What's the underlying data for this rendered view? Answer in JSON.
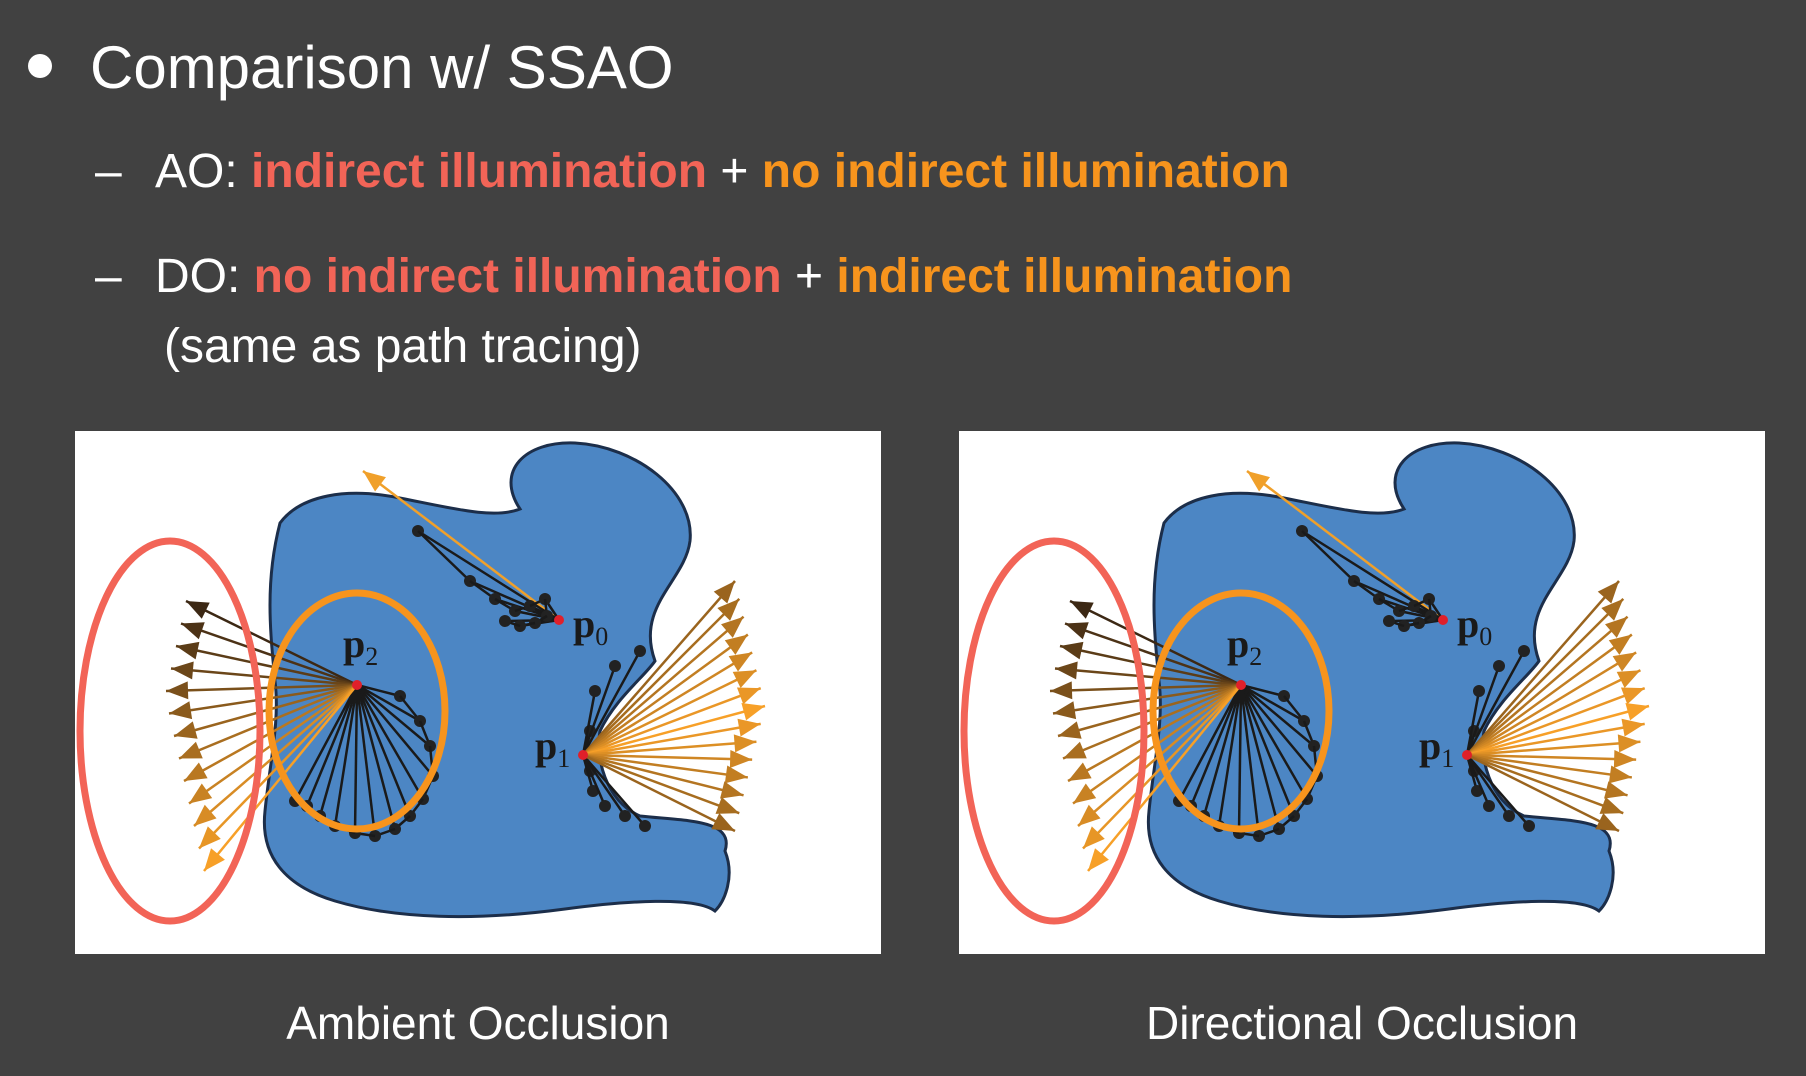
{
  "title": "Comparison w/ SSAO",
  "items": [
    {
      "prefix": "AO: ",
      "first": "indirect illumination",
      "plus": " + ",
      "second": "no indirect illumination"
    },
    {
      "prefix": "DO: ",
      "first": "no indirect illumination",
      "plus": " + ",
      "second": "indirect illumination",
      "continuation": "(same as path tracing)"
    }
  ],
  "point_labels": {
    "p0": "0",
    "p1": "1",
    "p2": "2",
    "p": "p"
  },
  "captions": {
    "left": "Ambient Occlusion",
    "right": "Directional Occlusion"
  },
  "colors": {
    "background": "#414141",
    "red_highlight": "#f26457",
    "orange_highlight": "#f7941d",
    "shape_blue": "#4c86c4"
  }
}
